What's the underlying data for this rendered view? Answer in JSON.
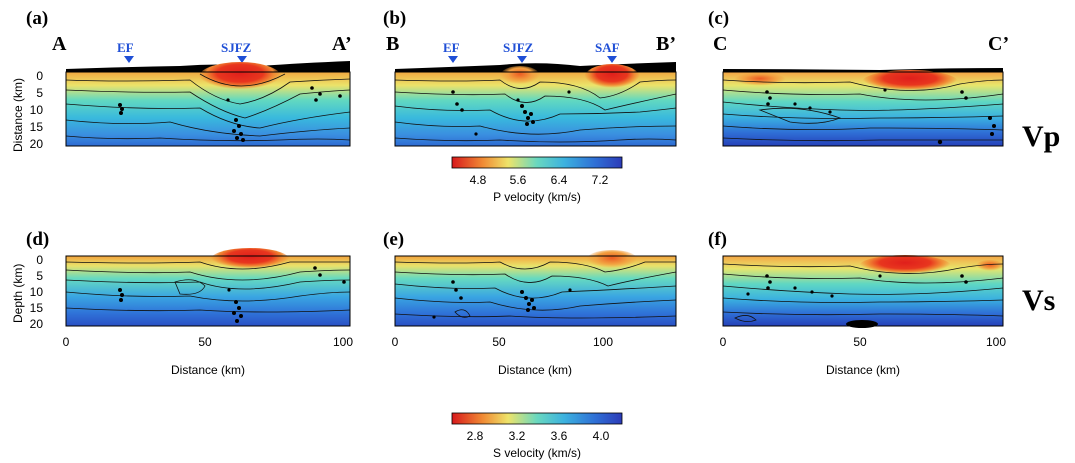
{
  "vp_profiles": [
    {
      "panel": "(a)",
      "start": "A",
      "end": "A’",
      "faults": [
        "EF",
        "SJFZ"
      ]
    },
    {
      "panel": "(b)",
      "start": "B",
      "end": "B’",
      "faults": [
        "EF",
        "SJFZ",
        "SAF"
      ]
    },
    {
      "panel": "(c)",
      "start": "C",
      "end": "C’",
      "faults": []
    }
  ],
  "vs_profiles": [
    {
      "panel": "(d)"
    },
    {
      "panel": "(e)"
    },
    {
      "panel": "(f)"
    }
  ],
  "row_labels": {
    "vp": "Vp",
    "vs": "Vs"
  },
  "y_axis": {
    "top_title": "Distance (km)",
    "bottom_title": "Depth (km)",
    "ticks": [
      "0",
      "5",
      "10",
      "15",
      "20"
    ]
  },
  "x_axis": {
    "title": "Distance (km)",
    "ticks_a": [
      "0",
      "50",
      "100"
    ],
    "ticks_b": [
      "0",
      "50",
      "100"
    ],
    "ticks_c": [
      "0",
      "50",
      "100"
    ]
  },
  "colorbars": {
    "p": {
      "label": "P velocity (km/s)",
      "ticks": [
        "4.8",
        "5.6",
        "6.4",
        "7.2"
      ]
    },
    "s": {
      "label": "S velocity (km/s)",
      "ticks": [
        "2.8",
        "3.2",
        "3.6",
        "4.0"
      ]
    }
  },
  "colors": {
    "fault_marker": "#1f4fd6",
    "low_velocity": "#d7191c",
    "high_velocity": "#2c3bb8"
  }
}
